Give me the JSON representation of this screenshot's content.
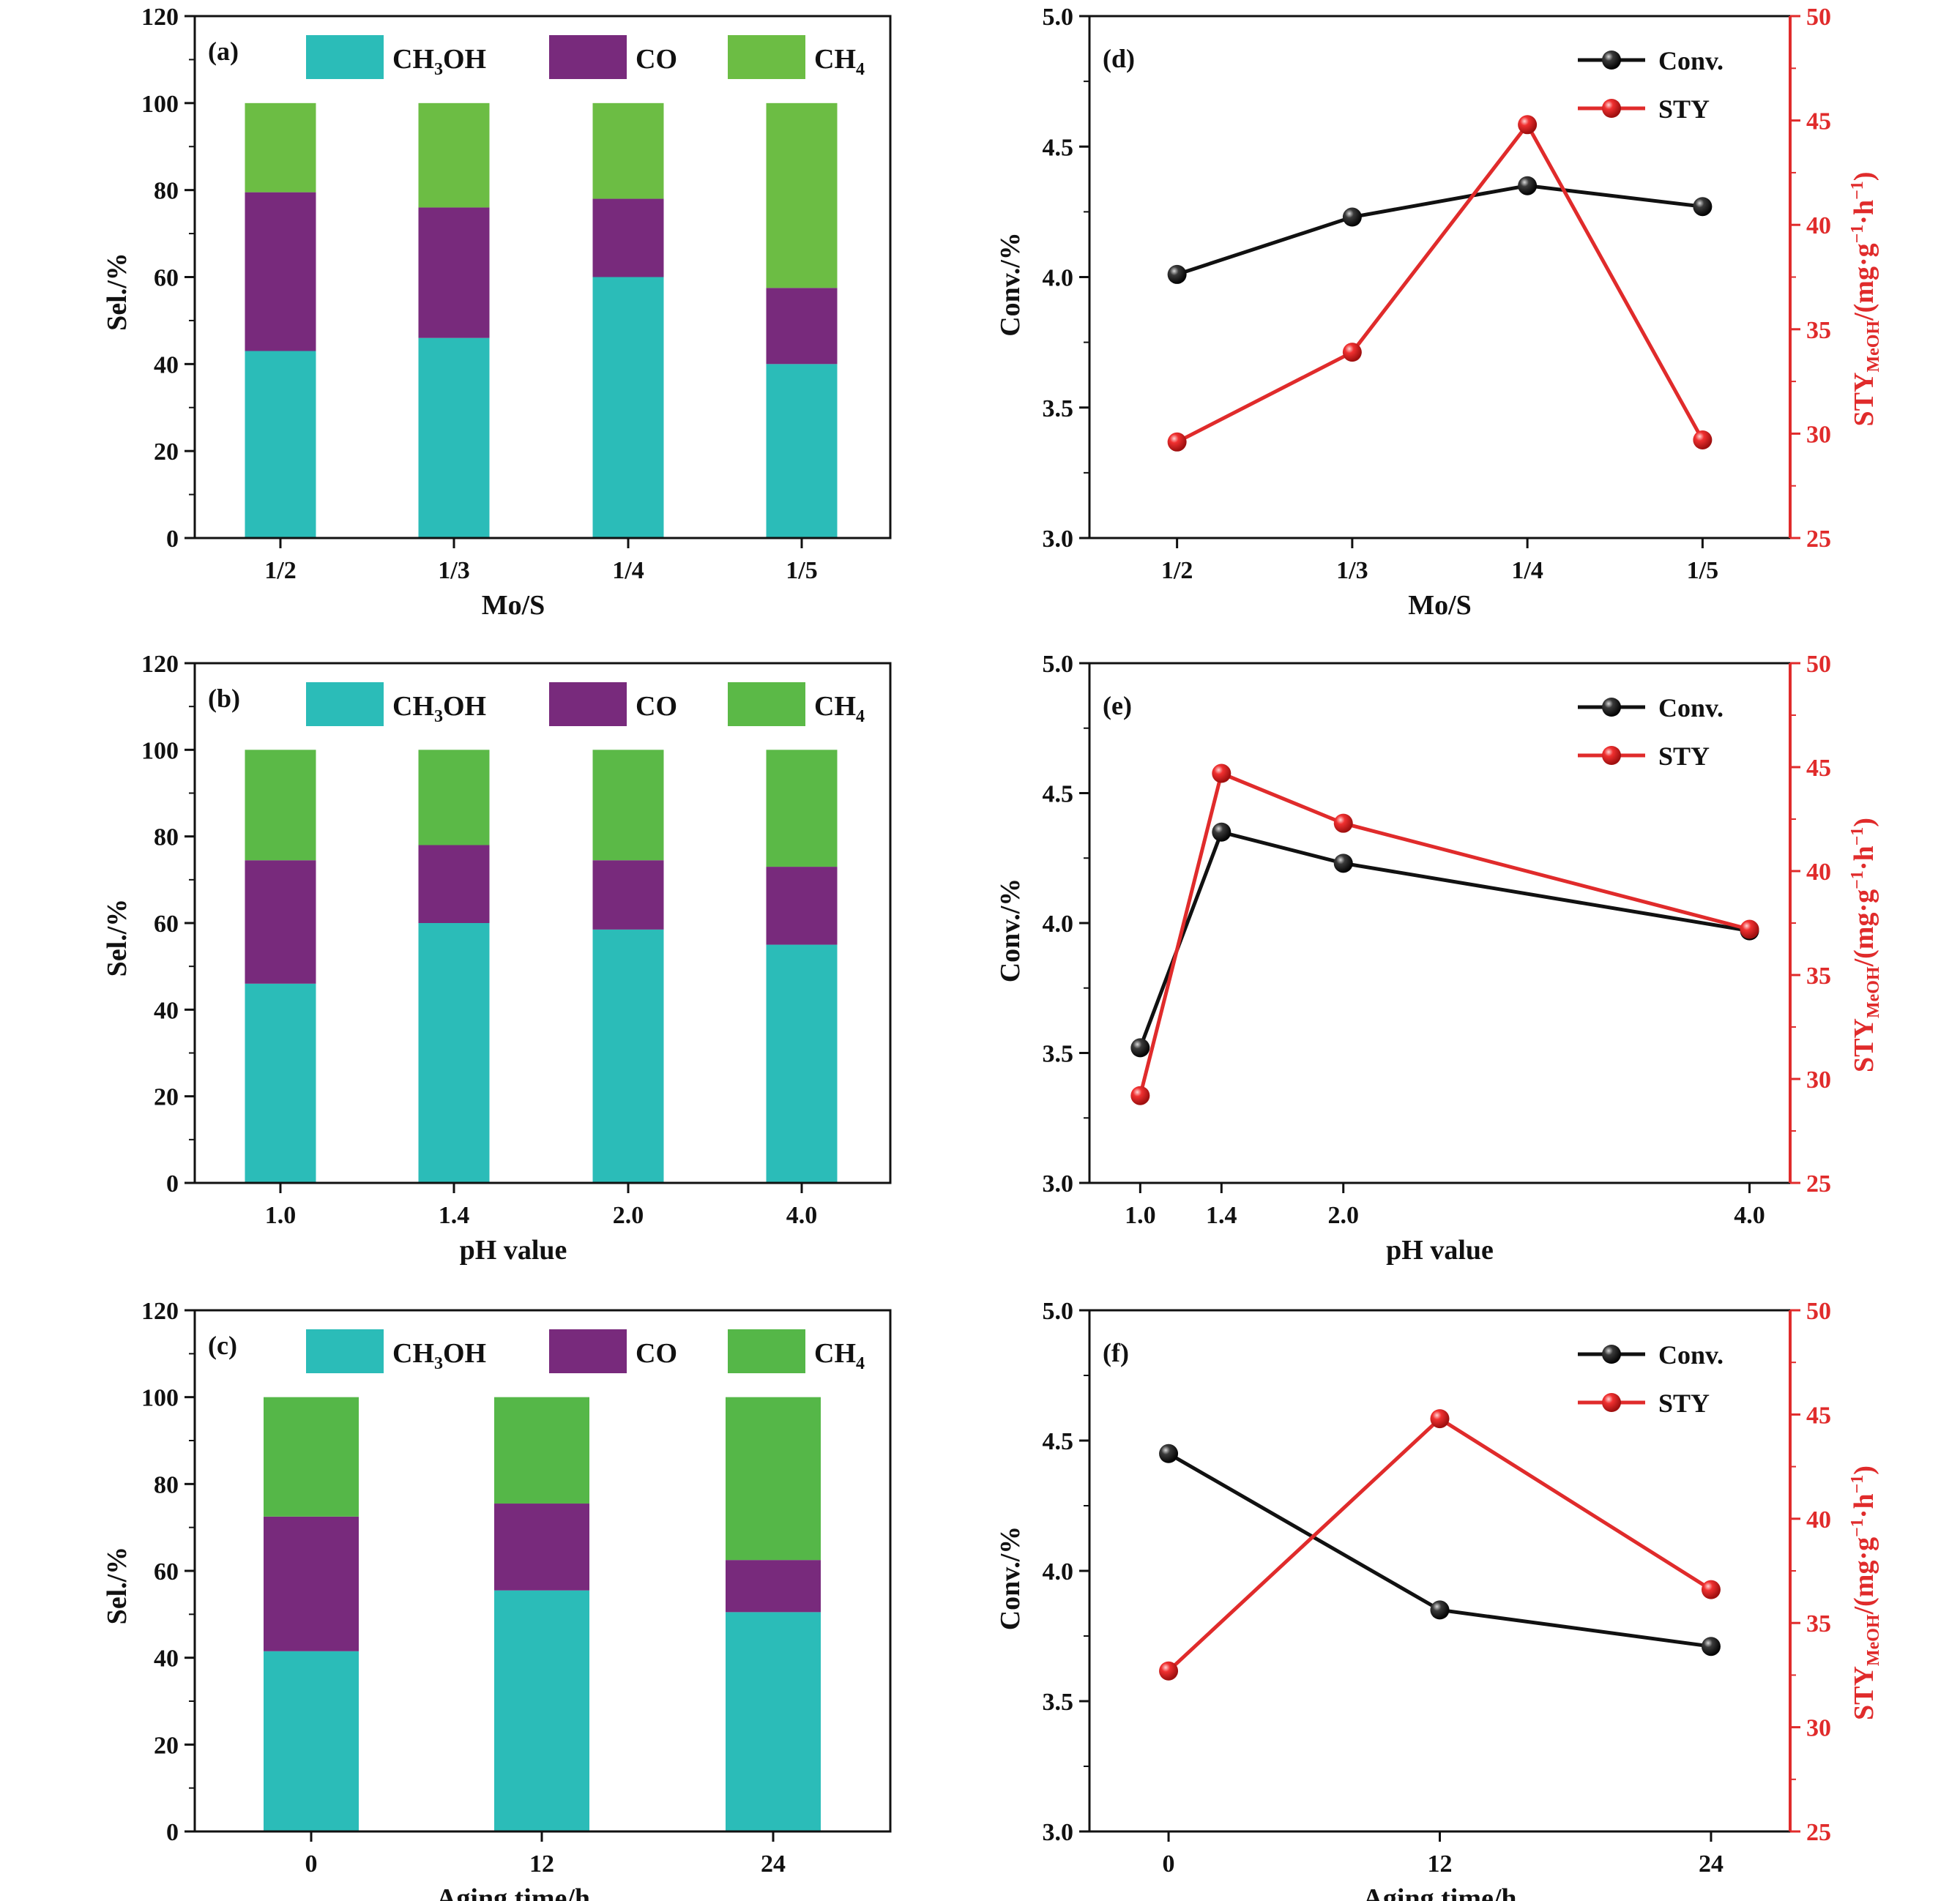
{
  "chart_data": [
    {
      "panel": "(a)",
      "type": "bar",
      "stacked": true,
      "xlabel": "Mo/S",
      "ylabel": "Sel./%",
      "ylim": [
        0,
        120
      ],
      "yticks": [
        "0",
        "20",
        "40",
        "60",
        "80",
        "100",
        "120"
      ],
      "categories": [
        "1/2",
        "1/3",
        "1/4",
        "1/5"
      ],
      "series": [
        {
          "name": "CH3OH",
          "color": "#2bbcb8",
          "values": [
            43,
            46,
            60,
            40
          ]
        },
        {
          "name": "CO",
          "color": "#782a7c",
          "values": [
            36.5,
            30,
            18,
            17.5
          ]
        },
        {
          "name": "CH4",
          "color": "#6cbd44",
          "values": [
            20.5,
            24,
            22,
            42.5
          ]
        }
      ],
      "legend": "top"
    },
    {
      "panel": "(b)",
      "type": "bar",
      "stacked": true,
      "xlabel": "pH value",
      "ylabel": "Sel./%",
      "ylim": [
        0,
        120
      ],
      "yticks": [
        "0",
        "20",
        "40",
        "60",
        "80",
        "100",
        "120"
      ],
      "categories": [
        "1.0",
        "1.4",
        "2.0",
        "4.0"
      ],
      "series": [
        {
          "name": "CH3OH",
          "color": "#2bbcb8",
          "values": [
            46,
            60,
            58.5,
            55
          ]
        },
        {
          "name": "CO",
          "color": "#782a7c",
          "values": [
            28.5,
            18,
            16,
            18
          ]
        },
        {
          "name": "CH4",
          "color": "#5bb947",
          "values": [
            25.5,
            22,
            25.5,
            27
          ]
        }
      ],
      "legend": "top"
    },
    {
      "panel": "(c)",
      "type": "bar",
      "stacked": true,
      "xlabel": "Aging time/h",
      "ylabel": "Sel./%",
      "ylim": [
        0,
        120
      ],
      "yticks": [
        "0",
        "20",
        "40",
        "60",
        "80",
        "100",
        "120"
      ],
      "categories": [
        "0",
        "12",
        "24"
      ],
      "series": [
        {
          "name": "CH3OH",
          "color": "#2bbcb8",
          "values": [
            41.5,
            55.5,
            50.5
          ]
        },
        {
          "name": "CO",
          "color": "#782a7c",
          "values": [
            31,
            20,
            12
          ]
        },
        {
          "name": "CH4",
          "color": "#55b748",
          "values": [
            27.5,
            24.5,
            37.5
          ]
        }
      ],
      "legend": "top"
    },
    {
      "panel": "(d)",
      "type": "line",
      "xlabel": "Mo/S",
      "ylabel": "Conv./%",
      "y2label_main": "STY",
      "y2label_sub": "MeOH",
      "y2label_rest": "/(mg·g",
      "y2label_sup": "−1",
      "y2label_rest2": "·h",
      "y2label_sup2": "−1",
      "y2label_end": ")",
      "ylim": [
        3.0,
        5.0
      ],
      "y2lim": [
        25,
        50
      ],
      "yticks": [
        "3.0",
        "3.5",
        "4.0",
        "4.5",
        "5.0"
      ],
      "y2ticks": [
        "25",
        "30",
        "35",
        "40",
        "45",
        "50"
      ],
      "x": [
        1,
        2,
        3,
        4
      ],
      "xlim": [
        0.5,
        4.5
      ],
      "xtick_labels": [
        "1/2",
        "1/3",
        "1/4",
        "1/5"
      ],
      "series": [
        {
          "name": "Conv.",
          "axis": "left",
          "color": "#111111",
          "values": [
            4.01,
            4.23,
            4.35,
            4.27
          ]
        },
        {
          "name": "STY",
          "axis": "right",
          "color": "#e02b2b",
          "values": [
            29.6,
            33.9,
            44.8,
            29.7
          ]
        }
      ],
      "legend": "top-right"
    },
    {
      "panel": "(e)",
      "type": "line",
      "xlabel": "pH value",
      "ylabel": "Conv./%",
      "y2label_main": "STY",
      "y2label_sub": "MeOH",
      "y2label_rest": "/(mg·g",
      "y2label_sup": "−1",
      "y2label_rest2": "·h",
      "y2label_sup2": "−1",
      "y2label_end": ")",
      "ylim": [
        3.0,
        5.0
      ],
      "y2lim": [
        25,
        50
      ],
      "yticks": [
        "3.0",
        "3.5",
        "4.0",
        "4.5",
        "5.0"
      ],
      "y2ticks": [
        "25",
        "30",
        "35",
        "40",
        "45",
        "50"
      ],
      "x": [
        1.0,
        1.4,
        2.0,
        4.0
      ],
      "xlim": [
        0.75,
        4.2
      ],
      "xtick_labels": [
        "1.0",
        "1.4",
        "2.0",
        "4.0"
      ],
      "series": [
        {
          "name": "Conv.",
          "axis": "left",
          "color": "#111111",
          "values": [
            3.52,
            4.35,
            4.23,
            3.97
          ]
        },
        {
          "name": "STY",
          "axis": "right",
          "color": "#e02b2b",
          "values": [
            29.2,
            44.7,
            42.3,
            37.2
          ]
        }
      ],
      "legend": "top-right"
    },
    {
      "panel": "(f)",
      "type": "line",
      "xlabel": "Aging time/h",
      "ylabel": "Conv./%",
      "y2label_main": "STY",
      "y2label_sub": "MeOH",
      "y2label_rest": "/(mg·g",
      "y2label_sup": "−1",
      "y2label_rest2": "·h",
      "y2label_sup2": "−1",
      "y2label_end": ")",
      "ylim": [
        3.0,
        5.0
      ],
      "y2lim": [
        25,
        50
      ],
      "yticks": [
        "3.0",
        "3.5",
        "4.0",
        "4.5",
        "5.0"
      ],
      "y2ticks": [
        "25",
        "30",
        "35",
        "40",
        "45",
        "50"
      ],
      "x": [
        0,
        12,
        24
      ],
      "xlim": [
        -3.5,
        27.5
      ],
      "xtick_labels": [
        "0",
        "12",
        "24"
      ],
      "series": [
        {
          "name": "Conv.",
          "axis": "left",
          "color": "#111111",
          "values": [
            4.45,
            3.85,
            3.71
          ]
        },
        {
          "name": "STY",
          "axis": "right",
          "color": "#e02b2b",
          "values": [
            32.7,
            44.8,
            36.6
          ]
        }
      ],
      "legend": "top-right"
    }
  ]
}
